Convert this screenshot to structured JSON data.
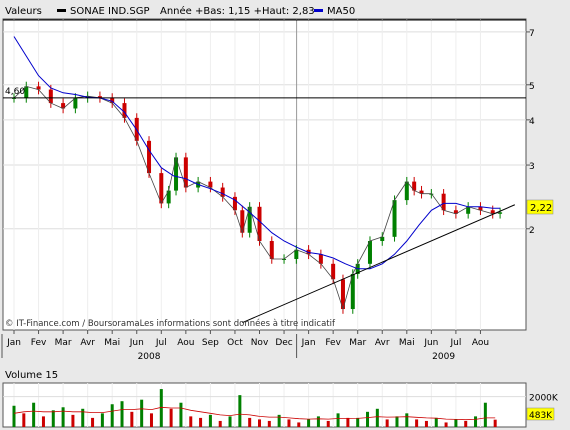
{
  "header": {
    "label": "Valeurs",
    "ticker": "SONAE IND.SGP",
    "year_range": "Année +Bas: 1,15 +Haut: 2,83",
    "ma_label": "MA50"
  },
  "footer": {
    "credit": "© IT-Finance.com / BoursoramaLes informations sont données à titre indicatif"
  },
  "colors": {
    "price_up": "#008000",
    "price_down": "#cc0000",
    "ma50": "#0000cc",
    "trendline": "#000000",
    "reference_line": "#000000",
    "last_price_badge": "#ffff00",
    "volume_last_badge": "#ffff00",
    "volume_average": "#cc0000"
  },
  "chart_data": [
    {
      "type": "candlestick",
      "title": "SONAE IND.SGP",
      "y_scale": "log",
      "y_ticks": [
        "7",
        "5",
        "4",
        "3",
        "2"
      ],
      "y_tick_values": [
        7,
        5,
        4,
        3,
        2
      ],
      "ylim": [
        1.05,
        7.6
      ],
      "x_months": [
        "Jan",
        "Fev",
        "Mar",
        "Avr",
        "Mai",
        "Jun",
        "Jul",
        "Aou",
        "Sep",
        "Oct",
        "Nov",
        "Dec",
        "Jan",
        "Fev",
        "Mar",
        "Avr",
        "Mai",
        "Jun",
        "Jul",
        "Aou"
      ],
      "x_years": [
        {
          "label": "2008",
          "start_month": 0
        },
        {
          "label": "2009",
          "start_month": 12
        }
      ],
      "reference_line": {
        "value": 4.6,
        "label": "4,60"
      },
      "last_price": {
        "value": 2.22,
        "label": "2,22"
      },
      "year_low": 1.15,
      "year_high": 2.83,
      "price_series": {
        "name": "SONAE IND.SGP",
        "month_index": [
          0.0,
          0.5,
          1.0,
          1.5,
          2.0,
          2.5,
          3.0,
          3.5,
          4.0,
          4.5,
          5.0,
          5.5,
          6.0,
          6.3,
          6.6,
          7.0,
          7.5,
          8.0,
          8.5,
          9.0,
          9.3,
          9.6,
          10.0,
          10.5,
          11.0,
          11.5,
          12.0,
          12.5,
          13.0,
          13.4,
          13.8,
          14.0,
          14.5,
          15.0,
          15.5,
          16.0,
          16.3,
          16.6,
          17.0,
          17.5,
          18.0,
          18.5,
          19.0,
          19.5,
          19.8
        ],
        "close": [
          4.6,
          4.95,
          4.85,
          4.45,
          4.3,
          4.6,
          4.65,
          4.6,
          4.45,
          4.05,
          3.5,
          2.85,
          2.35,
          2.55,
          3.15,
          2.6,
          2.7,
          2.6,
          2.45,
          2.25,
          1.95,
          2.3,
          1.85,
          1.65,
          1.65,
          1.75,
          1.7,
          1.6,
          1.45,
          1.2,
          1.5,
          1.6,
          1.85,
          1.9,
          2.4,
          2.7,
          2.55,
          2.5,
          2.5,
          2.25,
          2.2,
          2.3,
          2.25,
          2.2,
          2.22
        ]
      },
      "ma50_series": {
        "name": "MA50",
        "month_index": [
          0.0,
          0.5,
          1.0,
          1.5,
          2.0,
          2.5,
          3.0,
          3.5,
          4.0,
          4.5,
          5.0,
          5.5,
          6.0,
          6.5,
          7.0,
          7.5,
          8.0,
          8.5,
          9.0,
          9.5,
          10.0,
          10.5,
          11.0,
          11.5,
          12.0,
          12.5,
          13.0,
          13.5,
          14.0,
          14.5,
          15.0,
          15.5,
          16.0,
          16.5,
          17.0,
          17.5,
          18.0,
          18.5,
          19.0,
          19.5,
          19.8
        ],
        "values": [
          6.8,
          6.0,
          5.3,
          4.9,
          4.75,
          4.7,
          4.62,
          4.6,
          4.5,
          4.2,
          3.75,
          3.3,
          2.95,
          2.8,
          2.75,
          2.65,
          2.58,
          2.5,
          2.4,
          2.25,
          2.1,
          1.95,
          1.85,
          1.78,
          1.72,
          1.7,
          1.66,
          1.6,
          1.55,
          1.55,
          1.6,
          1.7,
          1.85,
          2.05,
          2.25,
          2.35,
          2.35,
          2.3,
          2.3,
          2.28,
          2.28
        ]
      },
      "trendline": {
        "start": {
          "month_index": 9.3,
          "value": 1.1
        },
        "end": {
          "month_index": 20.4,
          "value": 2.33
        }
      }
    },
    {
      "type": "bar",
      "title": "Volume 15",
      "y_ticks": [
        "2000K"
      ],
      "y_tick_values": [
        2000
      ],
      "ylim": [
        0,
        2900
      ],
      "last_volume": {
        "value": 483,
        "label": "483K"
      },
      "month_index": [
        0.0,
        0.4,
        0.8,
        1.2,
        1.6,
        2.0,
        2.4,
        2.8,
        3.2,
        3.6,
        4.0,
        4.4,
        4.8,
        5.2,
        5.6,
        6.0,
        6.4,
        6.8,
        7.2,
        7.6,
        8.0,
        8.4,
        8.8,
        9.2,
        9.6,
        10.0,
        10.4,
        10.8,
        11.2,
        11.6,
        12.0,
        12.4,
        12.8,
        13.2,
        13.6,
        14.0,
        14.4,
        14.8,
        15.2,
        15.6,
        16.0,
        16.4,
        16.8,
        17.2,
        17.6,
        18.0,
        18.4,
        18.8,
        19.2,
        19.6
      ],
      "values": [
        1400,
        900,
        1600,
        700,
        1100,
        1300,
        800,
        1200,
        600,
        900,
        1500,
        1700,
        1000,
        1800,
        900,
        2500,
        1200,
        1600,
        700,
        600,
        800,
        400,
        700,
        2100,
        600,
        500,
        400,
        800,
        500,
        300,
        500,
        700,
        400,
        900,
        600,
        600,
        1000,
        1200,
        500,
        700,
        900,
        500,
        400,
        600,
        300,
        500,
        400,
        700,
        1600,
        483
      ],
      "average": [
        900,
        1000,
        1050,
        1000,
        1000,
        1050,
        1000,
        1000,
        950,
        950,
        1050,
        1150,
        1150,
        1200,
        1150,
        1300,
        1250,
        1250,
        1100,
        1000,
        900,
        800,
        750,
        850,
        800,
        700,
        650,
        650,
        600,
        550,
        520,
        540,
        520,
        560,
        560,
        570,
        620,
        680,
        650,
        660,
        680,
        640,
        600,
        580,
        520,
        500,
        480,
        500,
        600,
        600
      ]
    }
  ]
}
